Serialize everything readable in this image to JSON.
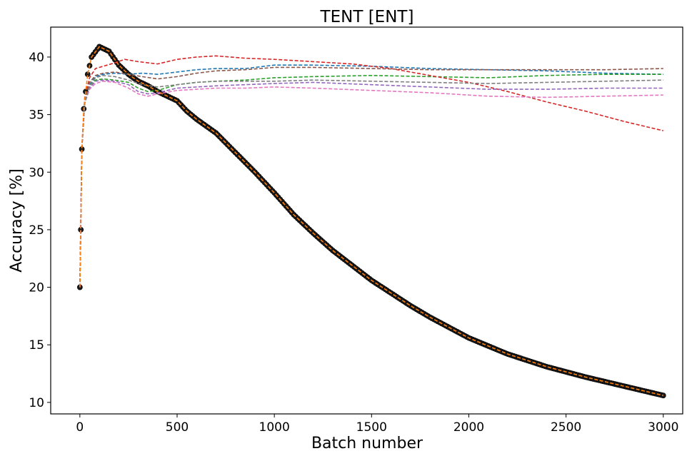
{
  "chart_data": {
    "type": "line",
    "title": "TENT [ENT]",
    "xlabel": "Batch number",
    "ylabel": "Accuracy [%]",
    "xlim": [
      -150,
      3100
    ],
    "ylim": [
      9,
      42.6
    ],
    "xticks": [
      0,
      500,
      1000,
      1500,
      2000,
      2500,
      3000
    ],
    "yticks": [
      10,
      15,
      20,
      25,
      30,
      35,
      40
    ],
    "grid": false,
    "legend": "none",
    "series": [
      {
        "color": "#1f77b4",
        "style": "dashed",
        "points": [
          [
            0,
            20
          ],
          [
            10,
            32
          ],
          [
            25,
            36
          ],
          [
            50,
            37.6
          ],
          [
            80,
            38.3
          ],
          [
            120,
            38.5
          ],
          [
            180,
            38.6
          ],
          [
            250,
            38.5
          ],
          [
            320,
            38.6
          ],
          [
            400,
            38.5
          ],
          [
            500,
            38.7
          ],
          [
            600,
            38.9
          ],
          [
            700,
            39.0
          ],
          [
            850,
            39.0
          ],
          [
            1000,
            39.3
          ],
          [
            1200,
            39.3
          ],
          [
            1500,
            39.2
          ],
          [
            1800,
            39.0
          ],
          [
            2100,
            38.9
          ],
          [
            2400,
            38.8
          ],
          [
            2700,
            38.6
          ],
          [
            3000,
            38.5
          ]
        ]
      },
      {
        "color": "#ff7f0e",
        "style": "dashed",
        "points": [
          [
            0,
            20
          ],
          [
            5,
            25
          ],
          [
            10,
            32
          ],
          [
            20,
            35.5
          ],
          [
            40,
            38.5
          ],
          [
            60,
            40
          ],
          [
            100,
            40.9
          ],
          [
            150,
            40.5
          ],
          [
            200,
            39.3
          ],
          [
            250,
            38.5
          ],
          [
            300,
            37.9
          ],
          [
            350,
            37.5
          ],
          [
            400,
            37.0
          ],
          [
            450,
            36.6
          ],
          [
            500,
            36.2
          ],
          [
            550,
            35.3
          ],
          [
            600,
            34.6
          ],
          [
            700,
            33.4
          ],
          [
            800,
            31.7
          ],
          [
            900,
            30.0
          ],
          [
            1000,
            28.2
          ],
          [
            1100,
            26.3
          ],
          [
            1200,
            24.7
          ],
          [
            1300,
            23.2
          ],
          [
            1400,
            21.9
          ],
          [
            1500,
            20.6
          ],
          [
            1600,
            19.5
          ],
          [
            1700,
            18.4
          ],
          [
            1800,
            17.4
          ],
          [
            1900,
            16.5
          ],
          [
            2000,
            15.6
          ],
          [
            2200,
            14.2
          ],
          [
            2400,
            13.1
          ],
          [
            2600,
            12.2
          ],
          [
            2800,
            11.4
          ],
          [
            3000,
            10.6
          ]
        ]
      },
      {
        "color": "#2ca02c",
        "style": "dashed",
        "points": [
          [
            0,
            20
          ],
          [
            10,
            32
          ],
          [
            25,
            36
          ],
          [
            50,
            37.5
          ],
          [
            80,
            38.0
          ],
          [
            120,
            38.1
          ],
          [
            180,
            38.0
          ],
          [
            250,
            37.8
          ],
          [
            300,
            37.3
          ],
          [
            350,
            37.0
          ],
          [
            400,
            37.1
          ],
          [
            500,
            37.6
          ],
          [
            600,
            37.8
          ],
          [
            700,
            37.9
          ],
          [
            850,
            38.0
          ],
          [
            1000,
            38.2
          ],
          [
            1200,
            38.3
          ],
          [
            1500,
            38.4
          ],
          [
            1800,
            38.3
          ],
          [
            2100,
            38.2
          ],
          [
            2400,
            38.4
          ],
          [
            2700,
            38.5
          ],
          [
            3000,
            38.5
          ]
        ]
      },
      {
        "color": "#d62728",
        "style": "dashed",
        "points": [
          [
            0,
            20
          ],
          [
            10,
            32
          ],
          [
            25,
            36.5
          ],
          [
            50,
            38.2
          ],
          [
            80,
            39.0
          ],
          [
            120,
            39.2
          ],
          [
            180,
            39.5
          ],
          [
            230,
            39.8
          ],
          [
            300,
            39.6
          ],
          [
            400,
            39.4
          ],
          [
            500,
            39.8
          ],
          [
            600,
            40.0
          ],
          [
            700,
            40.1
          ],
          [
            850,
            39.9
          ],
          [
            1000,
            39.8
          ],
          [
            1200,
            39.6
          ],
          [
            1400,
            39.4
          ],
          [
            1600,
            39.0
          ],
          [
            1800,
            38.4
          ],
          [
            2000,
            37.8
          ],
          [
            2200,
            37.0
          ],
          [
            2400,
            36.1
          ],
          [
            2600,
            35.3
          ],
          [
            2800,
            34.4
          ],
          [
            3000,
            33.6
          ]
        ]
      },
      {
        "color": "#9467bd",
        "style": "dashed",
        "points": [
          [
            0,
            20
          ],
          [
            10,
            32
          ],
          [
            25,
            36
          ],
          [
            50,
            37.3
          ],
          [
            80,
            37.9
          ],
          [
            120,
            38.0
          ],
          [
            180,
            37.9
          ],
          [
            250,
            37.6
          ],
          [
            300,
            37.0
          ],
          [
            350,
            36.8
          ],
          [
            400,
            36.9
          ],
          [
            500,
            37.3
          ],
          [
            600,
            37.4
          ],
          [
            700,
            37.5
          ],
          [
            850,
            37.6
          ],
          [
            1000,
            37.7
          ],
          [
            1200,
            37.8
          ],
          [
            1500,
            37.6
          ],
          [
            1800,
            37.4
          ],
          [
            2100,
            37.2
          ],
          [
            2400,
            37.2
          ],
          [
            2700,
            37.3
          ],
          [
            3000,
            37.3
          ]
        ]
      },
      {
        "color": "#8c564b",
        "style": "dashed",
        "points": [
          [
            0,
            20
          ],
          [
            10,
            32
          ],
          [
            25,
            36.2
          ],
          [
            50,
            37.8
          ],
          [
            80,
            38.4
          ],
          [
            120,
            38.6
          ],
          [
            180,
            38.7
          ],
          [
            250,
            38.5
          ],
          [
            320,
            38.3
          ],
          [
            400,
            38.1
          ],
          [
            500,
            38.3
          ],
          [
            600,
            38.6
          ],
          [
            700,
            38.8
          ],
          [
            850,
            38.9
          ],
          [
            1000,
            39.1
          ],
          [
            1200,
            39.1
          ],
          [
            1500,
            39.0
          ],
          [
            1800,
            38.9
          ],
          [
            2100,
            38.9
          ],
          [
            2400,
            38.9
          ],
          [
            2700,
            38.9
          ],
          [
            3000,
            39.0
          ]
        ]
      },
      {
        "color": "#e377c2",
        "style": "dashed",
        "points": [
          [
            0,
            20
          ],
          [
            10,
            32
          ],
          [
            25,
            36
          ],
          [
            50,
            37.2
          ],
          [
            80,
            37.7
          ],
          [
            120,
            37.9
          ],
          [
            180,
            37.8
          ],
          [
            250,
            37.3
          ],
          [
            300,
            36.8
          ],
          [
            350,
            36.6
          ],
          [
            400,
            36.8
          ],
          [
            500,
            37.1
          ],
          [
            600,
            37.2
          ],
          [
            700,
            37.3
          ],
          [
            850,
            37.3
          ],
          [
            1000,
            37.4
          ],
          [
            1200,
            37.3
          ],
          [
            1500,
            37.1
          ],
          [
            1800,
            36.9
          ],
          [
            2100,
            36.6
          ],
          [
            2400,
            36.5
          ],
          [
            2700,
            36.6
          ],
          [
            3000,
            36.7
          ]
        ]
      },
      {
        "color": "#7f7f7f",
        "style": "dashed",
        "points": [
          [
            0,
            20
          ],
          [
            5,
            25
          ],
          [
            10,
            32
          ],
          [
            25,
            36
          ],
          [
            50,
            37.5
          ],
          [
            80,
            38.2
          ],
          [
            120,
            38.4
          ],
          [
            180,
            38.3
          ],
          [
            250,
            38.0
          ],
          [
            320,
            37.6
          ],
          [
            400,
            37.4
          ],
          [
            500,
            37.6
          ],
          [
            600,
            37.8
          ],
          [
            700,
            37.9
          ],
          [
            850,
            37.9
          ],
          [
            1000,
            37.9
          ],
          [
            1200,
            38.0
          ],
          [
            1500,
            37.9
          ],
          [
            1800,
            37.8
          ],
          [
            2100,
            37.7
          ],
          [
            2400,
            37.8
          ],
          [
            2700,
            37.9
          ],
          [
            3000,
            38.0
          ]
        ]
      }
    ]
  }
}
